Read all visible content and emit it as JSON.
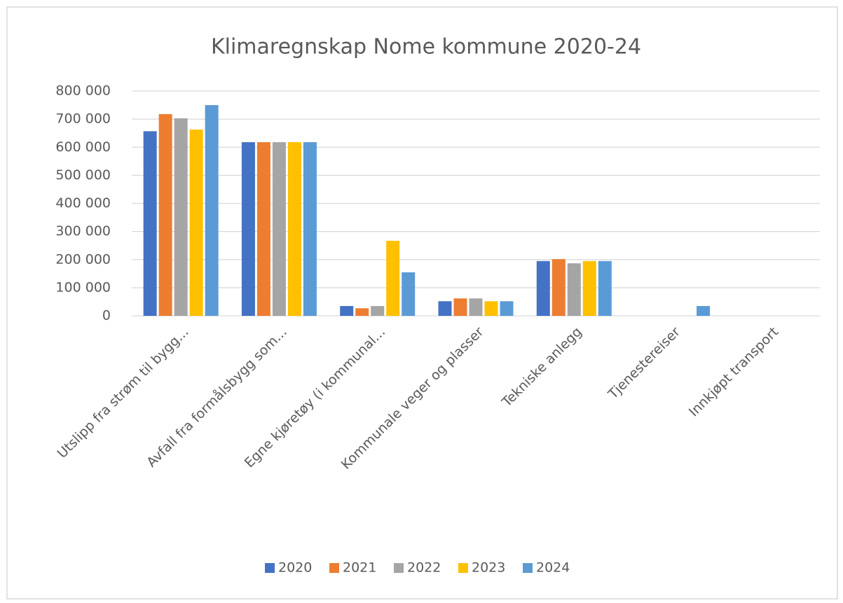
{
  "chart_data": {
    "type": "bar",
    "title": "Klimaregnskap Nome kommune 2020-24",
    "categories": [
      "Utslipp fra strøm til bygg...",
      "Avfall fra formålsbygg som...",
      "Egne kjøretøy (i kommunal...",
      "Kommunale veger og plasser",
      "Tekniske anlegg",
      "Tjenestereiser",
      "Innkjøpt transport"
    ],
    "series": [
      {
        "name": "2020",
        "color": "#4472c4",
        "values": [
          657000,
          618000,
          35000,
          52000,
          195000,
          0,
          0
        ]
      },
      {
        "name": "2021",
        "color": "#ed7d31",
        "values": [
          718000,
          618000,
          27000,
          62000,
          202000,
          0,
          0
        ]
      },
      {
        "name": "2022",
        "color": "#a5a5a5",
        "values": [
          703000,
          618000,
          35000,
          62000,
          187000,
          0,
          0
        ]
      },
      {
        "name": "2023",
        "color": "#ffc000",
        "values": [
          663000,
          618000,
          267000,
          52000,
          195000,
          0,
          0
        ]
      },
      {
        "name": "2024",
        "color": "#5b9bd5",
        "values": [
          750000,
          618000,
          155000,
          52000,
          195000,
          35000,
          0
        ]
      }
    ],
    "ylim": [
      0,
      800000
    ],
    "yticks": [
      {
        "value": 0,
        "label": "0"
      },
      {
        "value": 100000,
        "label": "100 000"
      },
      {
        "value": 200000,
        "label": "200 000"
      },
      {
        "value": 300000,
        "label": "300 000"
      },
      {
        "value": 400000,
        "label": "400 000"
      },
      {
        "value": 500000,
        "label": "500 000"
      },
      {
        "value": 600000,
        "label": "600 000"
      },
      {
        "value": 700000,
        "label": "700 000"
      },
      {
        "value": 800000,
        "label": "800 000"
      }
    ],
    "grid": true,
    "legend": "bottom"
  }
}
